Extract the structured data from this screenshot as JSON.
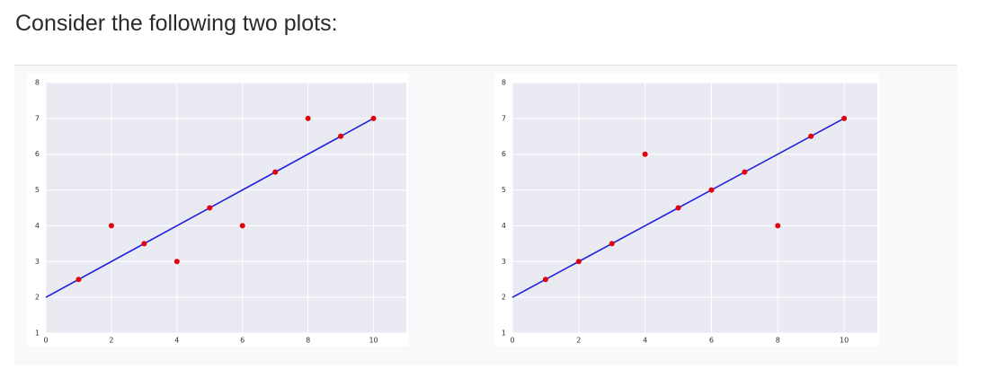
{
  "page": {
    "heading": "Consider the following two plots:"
  },
  "colors": {
    "plot_background": "#eaeaf2",
    "grid": "#ffffff",
    "line": "#1f1fe0",
    "points": "#e3000f"
  },
  "chart_data": [
    {
      "type": "scatter",
      "title": "",
      "xlabel": "",
      "ylabel": "",
      "xlim": [
        0,
        11
      ],
      "ylim": [
        1,
        8
      ],
      "xticks": [
        0,
        2,
        4,
        6,
        8,
        10
      ],
      "yticks": [
        1,
        2,
        3,
        4,
        5,
        6,
        7,
        8
      ],
      "grid": true,
      "legend": "none",
      "points": {
        "x": [
          1,
          2,
          3,
          4,
          5,
          6,
          7,
          8,
          9,
          10
        ],
        "y": [
          2.5,
          4,
          3.5,
          3,
          4.5,
          4,
          5.5,
          7,
          6.5,
          7
        ]
      },
      "fit_line": {
        "x": [
          0,
          10
        ],
        "y": [
          2,
          7
        ]
      }
    },
    {
      "type": "scatter",
      "title": "",
      "xlabel": "",
      "ylabel": "",
      "xlim": [
        0,
        11
      ],
      "ylim": [
        1,
        8
      ],
      "xticks": [
        0,
        2,
        4,
        6,
        8,
        10
      ],
      "yticks": [
        1,
        2,
        3,
        4,
        5,
        6,
        7,
        8
      ],
      "grid": true,
      "legend": "none",
      "points": {
        "x": [
          1,
          2,
          3,
          4,
          5,
          6,
          7,
          8,
          9,
          10
        ],
        "y": [
          2.5,
          3,
          3.5,
          6,
          4.5,
          5,
          5.5,
          4,
          6.5,
          7
        ]
      },
      "fit_line": {
        "x": [
          0,
          10
        ],
        "y": [
          2,
          7
        ]
      }
    }
  ]
}
